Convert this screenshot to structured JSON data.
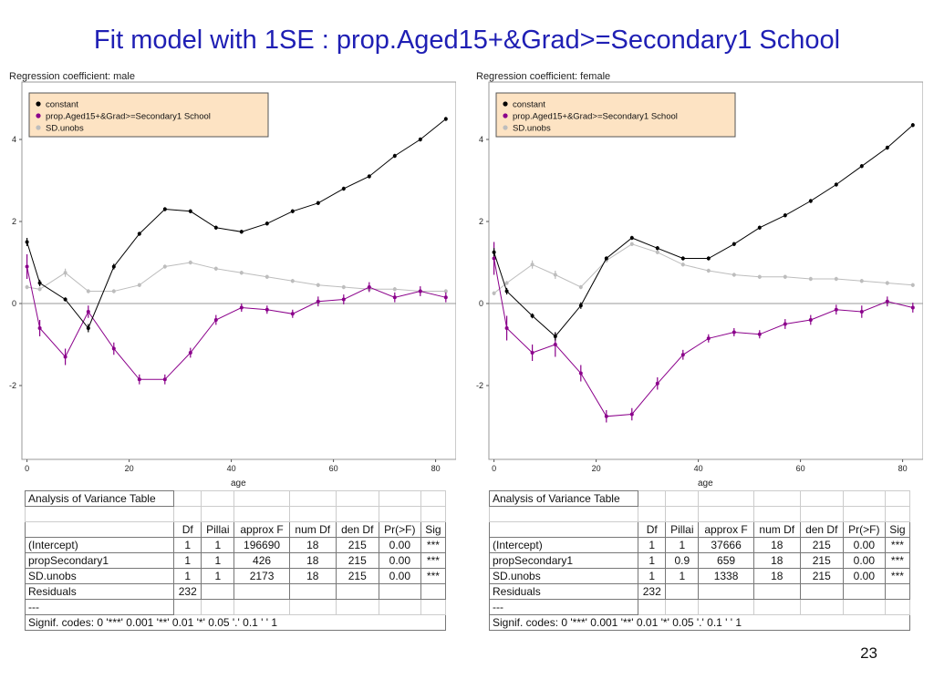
{
  "slide": {
    "title": "Fit model with 1SE : prop.Aged15+&Grad>=Secondary1 School",
    "page_number": "23"
  },
  "legend_labels": [
    "constant",
    "prop.Aged15+&Grad>=Secondary1 School",
    "SD.unobs"
  ],
  "colors": {
    "constant": "#000000",
    "prop": "#8b008b",
    "sd": "#bdbdbd",
    "legend_bg": "#fde3c3"
  },
  "chart_data": [
    {
      "type": "line",
      "title": "Regression coefficient: male",
      "xlabel": "age",
      "ylabel": "",
      "xlim": [
        -1,
        84
      ],
      "ylim": [
        -3.8,
        5.4
      ],
      "xticks": [
        0,
        20,
        40,
        60,
        80
      ],
      "yticks": [
        -2,
        0,
        2,
        4
      ],
      "legend_position": "top-left",
      "x": [
        0,
        2.5,
        7.5,
        12,
        17,
        22,
        27,
        32,
        37,
        42,
        47,
        52,
        57,
        62,
        67,
        72,
        77,
        82
      ],
      "series": [
        {
          "name": "constant",
          "values": [
            1.5,
            0.5,
            0.1,
            -0.6,
            0.9,
            1.7,
            2.3,
            2.25,
            1.85,
            1.75,
            1.95,
            2.25,
            2.45,
            2.8,
            3.1,
            3.6,
            4.0,
            4.5
          ],
          "err": [
            0.1,
            0.08,
            0.05,
            0.1,
            0.07,
            0.05,
            0.05,
            0.05,
            0.05,
            0.05,
            0.05,
            0.05,
            0.05,
            0.05,
            0.05,
            0.05,
            0.05,
            0.05
          ]
        },
        {
          "name": "prop.Aged15+&Grad>=Secondary1 School",
          "values": [
            0.9,
            -0.6,
            -1.3,
            -0.2,
            -1.1,
            -1.85,
            -1.85,
            -1.2,
            -0.4,
            -0.1,
            -0.15,
            -0.25,
            0.05,
            0.1,
            0.4,
            0.15,
            0.3,
            0.15
          ],
          "err": [
            0.3,
            0.2,
            0.2,
            0.15,
            0.15,
            0.12,
            0.12,
            0.12,
            0.12,
            0.1,
            0.1,
            0.1,
            0.12,
            0.12,
            0.12,
            0.12,
            0.12,
            0.12
          ]
        },
        {
          "name": "SD.unobs",
          "values": [
            0.4,
            0.35,
            0.75,
            0.3,
            0.3,
            0.45,
            0.9,
            1.0,
            0.85,
            0.75,
            0.65,
            0.55,
            0.45,
            0.4,
            0.35,
            0.35,
            0.3,
            0.3
          ],
          "err": [
            0.05,
            0.05,
            0.1,
            0.05,
            0.05,
            0.05,
            0.05,
            0.05,
            0.05,
            0.05,
            0.05,
            0.05,
            0.05,
            0.05,
            0.05,
            0.05,
            0.05,
            0.05
          ]
        }
      ]
    },
    {
      "type": "line",
      "title": "Regression coefficient: female",
      "xlabel": "age",
      "ylabel": "",
      "xlim": [
        -1,
        84
      ],
      "ylim": [
        -3.8,
        5.4
      ],
      "xticks": [
        0,
        20,
        40,
        60,
        80
      ],
      "yticks": [
        -2,
        0,
        2,
        4
      ],
      "legend_position": "top-left",
      "x": [
        0,
        2.5,
        7.5,
        12,
        17,
        22,
        27,
        32,
        37,
        42,
        47,
        52,
        57,
        62,
        67,
        72,
        77,
        82
      ],
      "series": [
        {
          "name": "constant",
          "values": [
            1.25,
            0.3,
            -0.3,
            -0.8,
            -0.05,
            1.1,
            1.6,
            1.35,
            1.1,
            1.1,
            1.45,
            1.85,
            2.15,
            2.5,
            2.9,
            3.35,
            3.8,
            4.35
          ],
          "err": [
            0.1,
            0.08,
            0.06,
            0.1,
            0.08,
            0.05,
            0.05,
            0.05,
            0.05,
            0.05,
            0.05,
            0.05,
            0.05,
            0.05,
            0.05,
            0.05,
            0.05,
            0.05
          ]
        },
        {
          "name": "prop.Aged15+&Grad>=Secondary1 School",
          "values": [
            1.1,
            -0.6,
            -1.2,
            -1.0,
            -1.7,
            -2.75,
            -2.7,
            -1.95,
            -1.25,
            -0.85,
            -0.7,
            -0.75,
            -0.5,
            -0.4,
            -0.15,
            -0.2,
            0.05,
            -0.1
          ],
          "err": [
            0.4,
            0.3,
            0.2,
            0.3,
            0.2,
            0.15,
            0.15,
            0.15,
            0.12,
            0.1,
            0.1,
            0.1,
            0.12,
            0.12,
            0.12,
            0.15,
            0.12,
            0.12
          ]
        },
        {
          "name": "SD.unobs",
          "values": [
            0.25,
            0.5,
            0.95,
            0.7,
            0.4,
            1.05,
            1.45,
            1.25,
            0.95,
            0.8,
            0.7,
            0.65,
            0.65,
            0.6,
            0.6,
            0.55,
            0.5,
            0.45
          ],
          "err": [
            0.05,
            0.05,
            0.1,
            0.1,
            0.05,
            0.05,
            0.05,
            0.05,
            0.05,
            0.05,
            0.05,
            0.05,
            0.05,
            0.05,
            0.05,
            0.05,
            0.05,
            0.05
          ]
        }
      ]
    },
    {
      "type": "table",
      "title": "Analysis of Variance Table",
      "columns": [
        "",
        "Df",
        "Pillai",
        "approx F",
        "num Df",
        "den Df",
        "Pr(>F)",
        "Sig"
      ],
      "rows": [
        [
          "(Intercept)",
          "1",
          "1",
          "196690",
          "18",
          "215",
          "0.00",
          "***"
        ],
        [
          "propSecondary1",
          "1",
          "1",
          "426",
          "18",
          "215",
          "0.00",
          "***"
        ],
        [
          "SD.unobs",
          "1",
          "1",
          "2173",
          "18",
          "215",
          "0.00",
          "***"
        ],
        [
          "Residuals",
          "232",
          "",
          "",
          "",
          "",
          "",
          ""
        ]
      ],
      "separator": "---",
      "footnote": "Signif. codes:  0 '***' 0.001 '**' 0.01 '*' 0.05 '.' 0.1 ' ' 1"
    },
    {
      "type": "table",
      "title": "Analysis of Variance Table",
      "columns": [
        "",
        "Df",
        "Pillai",
        "approx F",
        "num Df",
        "den Df",
        "Pr(>F)",
        "Sig"
      ],
      "rows": [
        [
          "(Intercept)",
          "1",
          "1",
          "37666",
          "18",
          "215",
          "0.00",
          "***"
        ],
        [
          "propSecondary1",
          "1",
          "0.9",
          "659",
          "18",
          "215",
          "0.00",
          "***"
        ],
        [
          "SD.unobs",
          "1",
          "1",
          "1338",
          "18",
          "215",
          "0.00",
          "***"
        ],
        [
          "Residuals",
          "232",
          "",
          "",
          "",
          "",
          "",
          ""
        ]
      ],
      "separator": "---",
      "footnote": "Signif. codes:  0 '***' 0.001 '**' 0.01 '*' 0.05 '.' 0.1 ' ' 1"
    }
  ]
}
